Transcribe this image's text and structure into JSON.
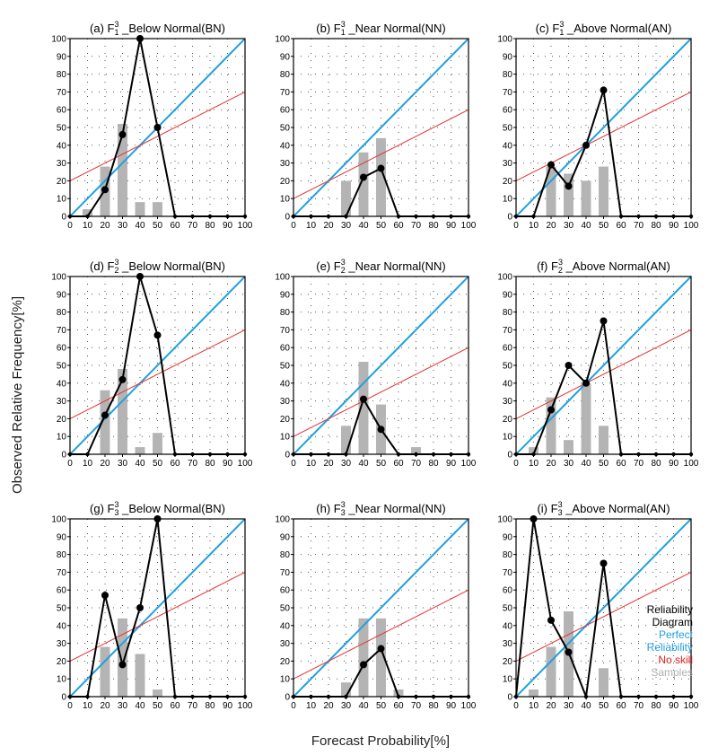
{
  "figure": {
    "xlabel": "Forecast Probability[%]",
    "ylabel": "Observed Relative Frequency[%]",
    "legend": {
      "placement": "bottom-right of panel (i)",
      "entries": [
        {
          "line1": "Reliability",
          "line2": "Diagram",
          "color": "#000000"
        },
        {
          "line1": "Perfect",
          "line2": "Reliability",
          "color": "#1fa0e0"
        },
        {
          "line1": "No skill",
          "line2": "",
          "color": "#e02020"
        },
        {
          "line1": "Samples",
          "line2": "",
          "color": "#b0b0b0"
        }
      ]
    },
    "colors": {
      "reliability": "#000000",
      "perfect": "#1fa0e0",
      "noskill": "#e83030",
      "samples": "#b4b4b4"
    }
  },
  "chart_data": [
    {
      "type": "line",
      "title_prefix": "(a) F",
      "sub": "1",
      "sup": "3",
      "title_suffix": " _Below Normal(BN)",
      "xlim": [
        0,
        100
      ],
      "ylim": [
        0,
        100
      ],
      "xticks": [
        0,
        10,
        20,
        30,
        40,
        50,
        60,
        70,
        80,
        90,
        100
      ],
      "yticks": [
        0,
        10,
        20,
        30,
        40,
        50,
        60,
        70,
        80,
        90,
        100
      ],
      "grid": true,
      "reliability": {
        "x": [
          0,
          10,
          20,
          30,
          40,
          50,
          60,
          70,
          80,
          90,
          100
        ],
        "y": [
          0,
          0,
          15,
          46,
          100,
          50,
          0,
          0,
          0,
          0,
          0
        ]
      },
      "perfect": [
        [
          0,
          0
        ],
        [
          100,
          100
        ]
      ],
      "noskill": [
        [
          0,
          20
        ],
        [
          100,
          70
        ]
      ],
      "samples": {
        "x": [
          10,
          20,
          30,
          40,
          50
        ],
        "y": [
          4,
          28,
          52,
          8,
          8
        ]
      }
    },
    {
      "type": "line",
      "title_prefix": "(b) F",
      "sub": "1",
      "sup": "3",
      "title_suffix": " _Near Normal(NN)",
      "xlim": [
        0,
        100
      ],
      "ylim": [
        0,
        100
      ],
      "xticks": [
        0,
        10,
        20,
        30,
        40,
        50,
        60,
        70,
        80,
        90,
        100
      ],
      "yticks": [
        0,
        10,
        20,
        30,
        40,
        50,
        60,
        70,
        80,
        90,
        100
      ],
      "grid": true,
      "reliability": {
        "x": [
          0,
          10,
          20,
          30,
          40,
          50,
          60,
          70,
          80,
          90,
          100
        ],
        "y": [
          0,
          0,
          0,
          0,
          22,
          27,
          0,
          0,
          0,
          0,
          0
        ]
      },
      "perfect": [
        [
          0,
          0
        ],
        [
          100,
          100
        ]
      ],
      "noskill": [
        [
          0,
          10
        ],
        [
          100,
          60
        ]
      ],
      "samples": {
        "x": [
          30,
          40,
          50
        ],
        "y": [
          20,
          36,
          44
        ]
      }
    },
    {
      "type": "line",
      "title_prefix": "(c) F",
      "sub": "1",
      "sup": "3",
      "title_suffix": " _Above Normal(AN)",
      "xlim": [
        0,
        100
      ],
      "ylim": [
        0,
        100
      ],
      "xticks": [
        0,
        10,
        20,
        30,
        40,
        50,
        60,
        70,
        80,
        90,
        100
      ],
      "yticks": [
        0,
        10,
        20,
        30,
        40,
        50,
        60,
        70,
        80,
        90,
        100
      ],
      "grid": true,
      "reliability": {
        "x": [
          0,
          10,
          20,
          30,
          40,
          50,
          60,
          70,
          80,
          90,
          100
        ],
        "y": [
          0,
          0,
          29,
          17,
          40,
          71,
          0,
          0,
          0,
          0,
          0
        ]
      },
      "perfect": [
        [
          0,
          0
        ],
        [
          100,
          100
        ]
      ],
      "noskill": [
        [
          0,
          20
        ],
        [
          100,
          70
        ]
      ],
      "samples": {
        "x": [
          20,
          30,
          40,
          50
        ],
        "y": [
          28,
          24,
          20,
          28
        ]
      }
    },
    {
      "type": "line",
      "title_prefix": "(d) F",
      "sub": "2",
      "sup": "3",
      "title_suffix": " _Below Normal(BN)",
      "xlim": [
        0,
        100
      ],
      "ylim": [
        0,
        100
      ],
      "xticks": [
        0,
        10,
        20,
        30,
        40,
        50,
        60,
        70,
        80,
        90,
        100
      ],
      "yticks": [
        0,
        10,
        20,
        30,
        40,
        50,
        60,
        70,
        80,
        90,
        100
      ],
      "grid": true,
      "reliability": {
        "x": [
          0,
          10,
          20,
          30,
          40,
          50,
          60,
          70,
          80,
          90,
          100
        ],
        "y": [
          0,
          0,
          22,
          42,
          100,
          67,
          0,
          0,
          0,
          0,
          0
        ]
      },
      "perfect": [
        [
          0,
          0
        ],
        [
          100,
          100
        ]
      ],
      "noskill": [
        [
          0,
          20
        ],
        [
          100,
          70
        ]
      ],
      "samples": {
        "x": [
          20,
          30,
          40,
          50
        ],
        "y": [
          36,
          48,
          4,
          12
        ]
      }
    },
    {
      "type": "line",
      "title_prefix": "(e) F",
      "sub": "2",
      "sup": "3",
      "title_suffix": " _Near Normal(NN)",
      "xlim": [
        0,
        100
      ],
      "ylim": [
        0,
        100
      ],
      "xticks": [
        0,
        10,
        20,
        30,
        40,
        50,
        60,
        70,
        80,
        90,
        100
      ],
      "yticks": [
        0,
        10,
        20,
        30,
        40,
        50,
        60,
        70,
        80,
        90,
        100
      ],
      "grid": true,
      "reliability": {
        "x": [
          0,
          10,
          20,
          30,
          40,
          50,
          60,
          70,
          80,
          90,
          100
        ],
        "y": [
          0,
          0,
          0,
          0,
          31,
          14,
          0,
          0,
          0,
          0,
          0
        ]
      },
      "perfect": [
        [
          0,
          0
        ],
        [
          100,
          100
        ]
      ],
      "noskill": [
        [
          0,
          10
        ],
        [
          100,
          60
        ]
      ],
      "samples": {
        "x": [
          30,
          40,
          50,
          70
        ],
        "y": [
          16,
          52,
          28,
          4
        ]
      }
    },
    {
      "type": "line",
      "title_prefix": "(f) F",
      "sub": "2",
      "sup": "3",
      "title_suffix": " _Above Normal(AN)",
      "xlim": [
        0,
        100
      ],
      "ylim": [
        0,
        100
      ],
      "xticks": [
        0,
        10,
        20,
        30,
        40,
        50,
        60,
        70,
        80,
        90,
        100
      ],
      "yticks": [
        0,
        10,
        20,
        30,
        40,
        50,
        60,
        70,
        80,
        90,
        100
      ],
      "grid": true,
      "reliability": {
        "x": [
          0,
          10,
          20,
          30,
          40,
          50,
          60,
          70,
          80,
          90,
          100
        ],
        "y": [
          0,
          0,
          25,
          50,
          40,
          75,
          0,
          0,
          0,
          0,
          0
        ]
      },
      "perfect": [
        [
          0,
          0
        ],
        [
          100,
          100
        ]
      ],
      "noskill": [
        [
          0,
          20
        ],
        [
          100,
          70
        ]
      ],
      "samples": {
        "x": [
          10,
          20,
          30,
          40,
          50
        ],
        "y": [
          4,
          32,
          8,
          40,
          16
        ]
      }
    },
    {
      "type": "line",
      "title_prefix": "(g) F",
      "sub": "3",
      "sup": "3",
      "title_suffix": " _Below Normal(BN)",
      "xlim": [
        0,
        100
      ],
      "ylim": [
        0,
        100
      ],
      "xticks": [
        0,
        10,
        20,
        30,
        40,
        50,
        60,
        70,
        80,
        90,
        100
      ],
      "yticks": [
        0,
        10,
        20,
        30,
        40,
        50,
        60,
        70,
        80,
        90,
        100
      ],
      "grid": true,
      "reliability": {
        "x": [
          0,
          10,
          20,
          30,
          40,
          50,
          60,
          70,
          80,
          90,
          100
        ],
        "y": [
          0,
          0,
          57,
          18,
          50,
          100,
          0,
          0,
          0,
          0,
          0
        ]
      },
      "perfect": [
        [
          0,
          0
        ],
        [
          100,
          100
        ]
      ],
      "noskill": [
        [
          0,
          20
        ],
        [
          100,
          70
        ]
      ],
      "samples": {
        "x": [
          20,
          30,
          40,
          50
        ],
        "y": [
          28,
          44,
          24,
          4
        ]
      }
    },
    {
      "type": "line",
      "title_prefix": "(h) F",
      "sub": "3",
      "sup": "3",
      "title_suffix": " _Near Normal(NN)",
      "xlim": [
        0,
        100
      ],
      "ylim": [
        0,
        100
      ],
      "xticks": [
        0,
        10,
        20,
        30,
        40,
        50,
        60,
        70,
        80,
        90,
        100
      ],
      "yticks": [
        0,
        10,
        20,
        30,
        40,
        50,
        60,
        70,
        80,
        90,
        100
      ],
      "grid": true,
      "reliability": {
        "x": [
          0,
          10,
          20,
          30,
          40,
          50,
          60,
          70,
          80,
          90,
          100
        ],
        "y": [
          0,
          0,
          0,
          0,
          18,
          27,
          0,
          0,
          0,
          0,
          0
        ]
      },
      "perfect": [
        [
          0,
          0
        ],
        [
          100,
          100
        ]
      ],
      "noskill": [
        [
          0,
          10
        ],
        [
          100,
          60
        ]
      ],
      "samples": {
        "x": [
          30,
          40,
          50,
          60
        ],
        "y": [
          8,
          44,
          44,
          4
        ]
      }
    },
    {
      "type": "line",
      "title_prefix": "(i) F",
      "sub": "3",
      "sup": "3",
      "title_suffix": " _Above Normal(AN)",
      "xlim": [
        0,
        100
      ],
      "ylim": [
        0,
        100
      ],
      "xticks": [
        0,
        10,
        20,
        30,
        40,
        50,
        60,
        70,
        80,
        90,
        100
      ],
      "yticks": [
        0,
        10,
        20,
        30,
        40,
        50,
        60,
        70,
        80,
        90,
        100
      ],
      "grid": true,
      "reliability": {
        "x": [
          0,
          10,
          20,
          30,
          40,
          50,
          60,
          70,
          80,
          90,
          100
        ],
        "y": [
          0,
          100,
          43,
          25,
          0,
          75,
          0,
          0,
          0,
          0,
          0
        ]
      },
      "perfect": [
        [
          0,
          0
        ],
        [
          100,
          100
        ]
      ],
      "noskill": [
        [
          0,
          20
        ],
        [
          100,
          70
        ]
      ],
      "samples": {
        "x": [
          10,
          20,
          30,
          50
        ],
        "y": [
          4,
          28,
          48,
          16
        ]
      }
    }
  ]
}
